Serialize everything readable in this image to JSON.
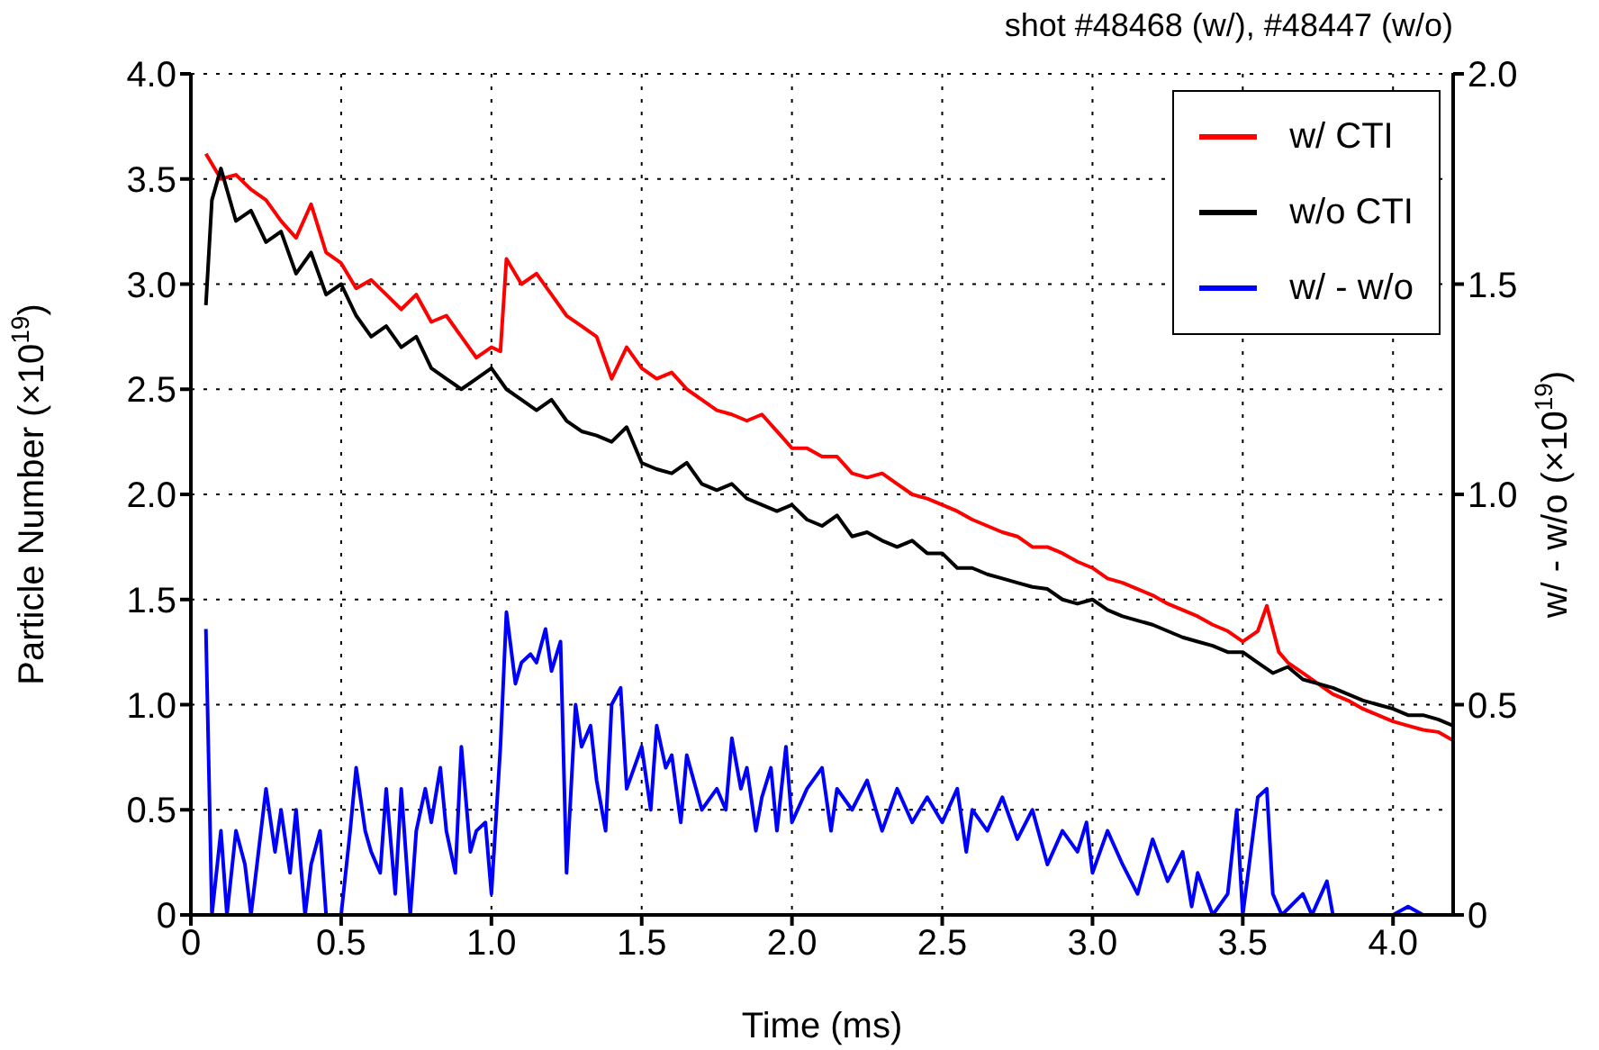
{
  "chart_data": {
    "type": "line",
    "title": "shot #48468 (w/), #48447 (w/o)",
    "xlabel": "Time (ms)",
    "ylabel": "Particle Number (×10$^{19}$)",
    "y2label": "w/ - w/o (×10$^{19}$)",
    "xlim": [
      0,
      4.2
    ],
    "xticks": [
      0,
      0.5,
      {
        "value": 1,
        "label": "1.0"
      },
      1.5,
      {
        "value": 2,
        "label": "2.0"
      },
      2.5,
      {
        "value": 3,
        "label": "3.0"
      },
      3.5,
      {
        "value": 4,
        "label": "4.0"
      }
    ],
    "ylim": [
      0,
      4
    ],
    "yticks": [
      0,
      0.5,
      {
        "value": 1,
        "label": "1.0"
      },
      1.5,
      {
        "value": 2,
        "label": "2.0"
      },
      2.5,
      {
        "value": 3,
        "label": "3.0"
      },
      3.5,
      {
        "value": 4,
        "label": "4.0"
      }
    ],
    "y2lim": [
      0,
      2
    ],
    "y2ticks": [
      0,
      0.5,
      {
        "value": 1,
        "label": "1.0"
      },
      1.5,
      {
        "value": 2,
        "label": "2.0"
      }
    ],
    "grid": true,
    "legend": "top right",
    "line_style": "solid",
    "series": [
      {
        "name": "w/ CTI",
        "color": "#ff0000",
        "x": [
          0.05,
          0.1,
          0.15,
          0.2,
          0.25,
          0.3,
          0.35,
          0.4,
          0.45,
          0.5,
          0.55,
          0.6,
          0.65,
          0.7,
          0.75,
          0.8,
          0.85,
          0.9,
          0.95,
          1.0,
          1.03,
          1.05,
          1.1,
          1.15,
          1.2,
          1.25,
          1.3,
          1.35,
          1.4,
          1.45,
          1.5,
          1.55,
          1.6,
          1.65,
          1.7,
          1.75,
          1.8,
          1.85,
          1.9,
          1.95,
          2.0,
          2.05,
          2.1,
          2.15,
          2.2,
          2.25,
          2.3,
          2.35,
          2.4,
          2.45,
          2.5,
          2.55,
          2.6,
          2.65,
          2.7,
          2.75,
          2.8,
          2.85,
          2.9,
          2.95,
          3.0,
          3.05,
          3.1,
          3.15,
          3.2,
          3.25,
          3.3,
          3.35,
          3.4,
          3.45,
          3.5,
          3.55,
          3.58,
          3.62,
          3.65,
          3.7,
          3.75,
          3.8,
          3.85,
          3.9,
          3.95,
          4.0,
          4.05,
          4.1,
          4.15,
          4.2
        ],
        "values": [
          3.62,
          3.5,
          3.52,
          3.45,
          3.4,
          3.3,
          3.22,
          3.38,
          3.15,
          3.1,
          2.98,
          3.02,
          2.95,
          2.88,
          2.95,
          2.82,
          2.85,
          2.75,
          2.65,
          2.7,
          2.68,
          3.12,
          3.0,
          3.05,
          2.95,
          2.85,
          2.8,
          2.75,
          2.55,
          2.7,
          2.6,
          2.55,
          2.58,
          2.5,
          2.45,
          2.4,
          2.38,
          2.35,
          2.38,
          2.3,
          2.22,
          2.22,
          2.18,
          2.18,
          2.1,
          2.08,
          2.1,
          2.05,
          2.0,
          1.98,
          1.95,
          1.92,
          1.88,
          1.85,
          1.82,
          1.8,
          1.75,
          1.75,
          1.72,
          1.68,
          1.65,
          1.6,
          1.58,
          1.55,
          1.52,
          1.48,
          1.45,
          1.42,
          1.38,
          1.35,
          1.3,
          1.35,
          1.47,
          1.25,
          1.2,
          1.15,
          1.1,
          1.05,
          1.02,
          0.98,
          0.95,
          0.92,
          0.9,
          0.88,
          0.87,
          0.83
        ]
      },
      {
        "name": "w/o CTI",
        "color": "#000000",
        "x": [
          0.05,
          0.07,
          0.1,
          0.15,
          0.2,
          0.25,
          0.3,
          0.35,
          0.4,
          0.45,
          0.5,
          0.55,
          0.6,
          0.65,
          0.7,
          0.75,
          0.8,
          0.85,
          0.9,
          0.95,
          1.0,
          1.05,
          1.1,
          1.15,
          1.2,
          1.25,
          1.3,
          1.35,
          1.4,
          1.45,
          1.5,
          1.55,
          1.6,
          1.65,
          1.7,
          1.75,
          1.8,
          1.85,
          1.9,
          1.95,
          2.0,
          2.05,
          2.1,
          2.15,
          2.2,
          2.25,
          2.3,
          2.35,
          2.4,
          2.45,
          2.5,
          2.55,
          2.6,
          2.65,
          2.7,
          2.75,
          2.8,
          2.85,
          2.9,
          2.95,
          3.0,
          3.05,
          3.1,
          3.15,
          3.2,
          3.25,
          3.3,
          3.35,
          3.4,
          3.45,
          3.5,
          3.55,
          3.6,
          3.65,
          3.7,
          3.75,
          3.8,
          3.85,
          3.9,
          3.95,
          4.0,
          4.05,
          4.1,
          4.15,
          4.2
        ],
        "values": [
          2.9,
          3.4,
          3.55,
          3.3,
          3.35,
          3.2,
          3.25,
          3.05,
          3.15,
          2.95,
          3.0,
          2.85,
          2.75,
          2.8,
          2.7,
          2.75,
          2.6,
          2.55,
          2.5,
          2.55,
          2.6,
          2.5,
          2.45,
          2.4,
          2.45,
          2.35,
          2.3,
          2.28,
          2.25,
          2.32,
          2.15,
          2.12,
          2.1,
          2.15,
          2.05,
          2.02,
          2.05,
          1.98,
          1.95,
          1.92,
          1.95,
          1.88,
          1.85,
          1.9,
          1.8,
          1.82,
          1.78,
          1.75,
          1.78,
          1.72,
          1.72,
          1.65,
          1.65,
          1.62,
          1.6,
          1.58,
          1.56,
          1.55,
          1.5,
          1.48,
          1.5,
          1.45,
          1.42,
          1.4,
          1.38,
          1.35,
          1.32,
          1.3,
          1.28,
          1.25,
          1.25,
          1.2,
          1.15,
          1.18,
          1.12,
          1.1,
          1.08,
          1.05,
          1.02,
          1.0,
          0.98,
          0.95,
          0.95,
          0.93,
          0.9
        ]
      },
      {
        "name": "w/ - w/o",
        "color": "#0000ff",
        "axis": "y2",
        "x": [
          0.05,
          0.07,
          0.1,
          0.12,
          0.15,
          0.18,
          0.2,
          0.25,
          0.28,
          0.3,
          0.33,
          0.35,
          0.38,
          0.4,
          0.43,
          0.45,
          0.5,
          0.53,
          0.55,
          0.58,
          0.6,
          0.63,
          0.65,
          0.68,
          0.7,
          0.73,
          0.75,
          0.78,
          0.8,
          0.83,
          0.85,
          0.88,
          0.9,
          0.93,
          0.95,
          0.98,
          1.0,
          1.03,
          1.05,
          1.08,
          1.1,
          1.13,
          1.15,
          1.18,
          1.2,
          1.23,
          1.25,
          1.28,
          1.3,
          1.33,
          1.35,
          1.38,
          1.4,
          1.43,
          1.45,
          1.5,
          1.53,
          1.55,
          1.58,
          1.6,
          1.63,
          1.65,
          1.7,
          1.75,
          1.78,
          1.8,
          1.83,
          1.85,
          1.88,
          1.9,
          1.93,
          1.95,
          1.98,
          2.0,
          2.05,
          2.1,
          2.13,
          2.15,
          2.2,
          2.25,
          2.3,
          2.35,
          2.4,
          2.45,
          2.5,
          2.55,
          2.58,
          2.6,
          2.65,
          2.7,
          2.75,
          2.8,
          2.85,
          2.9,
          2.95,
          2.98,
          3.0,
          3.05,
          3.1,
          3.15,
          3.2,
          3.25,
          3.3,
          3.33,
          3.35,
          3.4,
          3.45,
          3.48,
          3.5,
          3.55,
          3.58,
          3.6,
          3.63,
          3.7,
          3.73,
          3.78,
          3.8,
          3.9,
          4.0,
          4.05,
          4.1,
          4.2
        ],
        "values": [
          0.68,
          0,
          0.2,
          0,
          0.2,
          0.12,
          0,
          0.3,
          0.15,
          0.25,
          0.1,
          0.25,
          0,
          0.12,
          0.2,
          0,
          0,
          0.2,
          0.35,
          0.2,
          0.15,
          0.1,
          0.3,
          0.05,
          0.3,
          0,
          0.2,
          0.3,
          0.22,
          0.35,
          0.2,
          0.1,
          0.4,
          0.15,
          0.2,
          0.22,
          0.05,
          0.4,
          0.72,
          0.55,
          0.6,
          0.62,
          0.6,
          0.68,
          0.58,
          0.65,
          0.1,
          0.5,
          0.4,
          0.45,
          0.32,
          0.2,
          0.5,
          0.54,
          0.3,
          0.4,
          0.25,
          0.45,
          0.35,
          0.38,
          0.22,
          0.38,
          0.25,
          0.3,
          0.25,
          0.42,
          0.3,
          0.35,
          0.2,
          0.28,
          0.35,
          0.2,
          0.4,
          0.22,
          0.3,
          0.35,
          0.2,
          0.3,
          0.25,
          0.32,
          0.2,
          0.3,
          0.22,
          0.28,
          0.22,
          0.3,
          0.15,
          0.25,
          0.2,
          0.28,
          0.18,
          0.25,
          0.12,
          0.2,
          0.15,
          0.22,
          0.1,
          0.2,
          0.12,
          0.05,
          0.18,
          0.08,
          0.15,
          0.02,
          0.1,
          0,
          0.05,
          0.25,
          0,
          0.28,
          0.3,
          0.05,
          0,
          0.05,
          0,
          0.08,
          0,
          0,
          0,
          0.02,
          0,
          0
        ]
      }
    ]
  }
}
